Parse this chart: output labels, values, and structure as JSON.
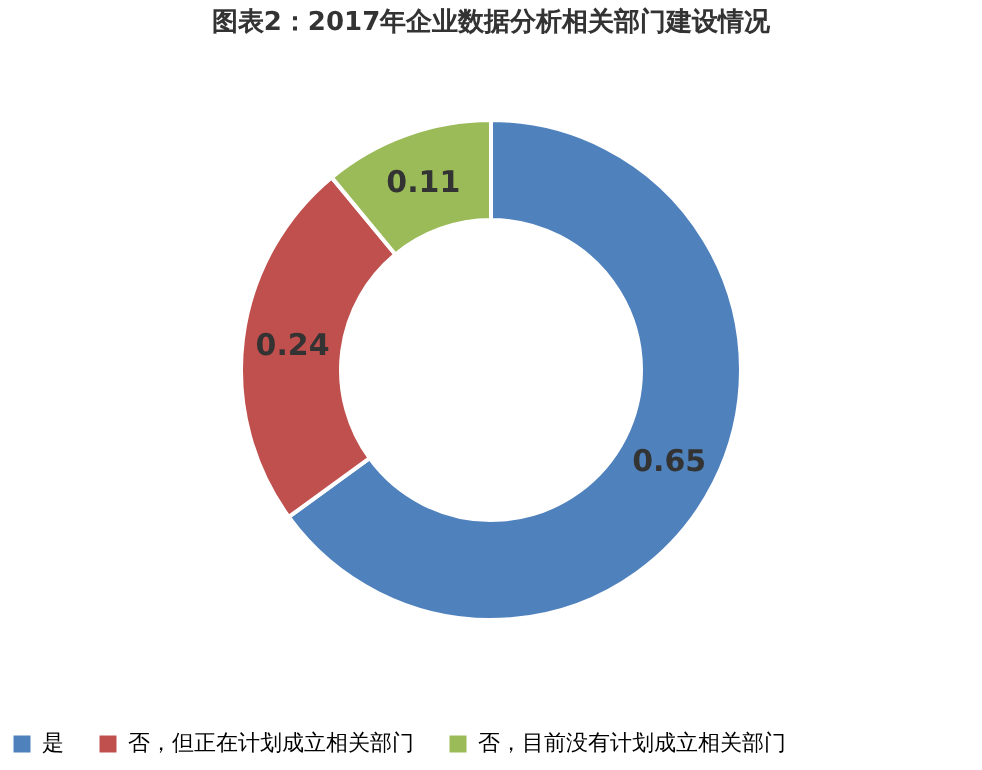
{
  "chart_data": {
    "type": "donut",
    "title": "图表2：2017年企业数据分析相关部门建设情况",
    "categories": [
      "是",
      "否，但正在计划成立相关部门",
      "否，目前没有计划成立相关部门"
    ],
    "values": [
      0.65,
      0.24,
      0.11
    ],
    "colors": [
      "#4f81bd",
      "#c0504d",
      "#9bbb59"
    ],
    "data_labels": true,
    "legend": "bottom"
  }
}
